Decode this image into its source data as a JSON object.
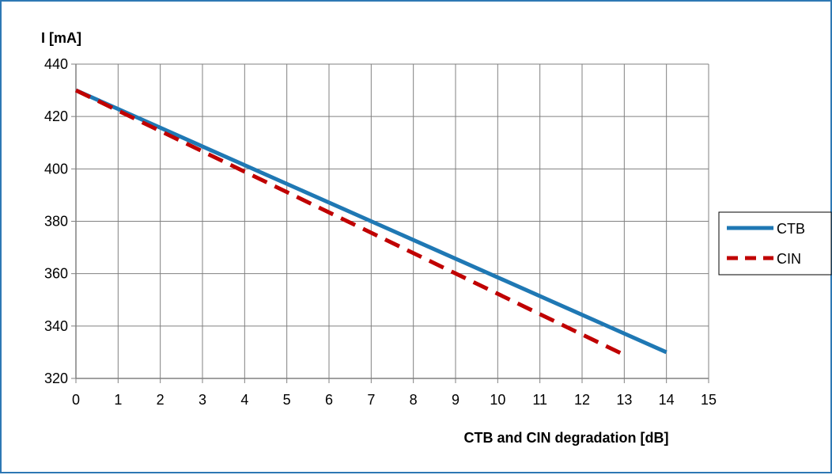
{
  "chart_data": {
    "type": "line",
    "ylabel": "I [mA]",
    "xlabel": "CTB and CIN degradation [dB]",
    "xlim": [
      0,
      15
    ],
    "ylim": [
      320,
      440
    ],
    "x_ticks": [
      0,
      1,
      2,
      3,
      4,
      5,
      6,
      7,
      8,
      9,
      10,
      11,
      12,
      13,
      14,
      15
    ],
    "y_ticks": [
      320,
      340,
      360,
      380,
      400,
      420,
      440
    ],
    "x_tick_labels": [
      "0",
      "1",
      "2",
      "3",
      "4",
      "5",
      "6",
      "7",
      "8",
      "9",
      "10",
      "11",
      "12",
      "13",
      "14",
      "15"
    ],
    "y_tick_labels": [
      "320",
      "340",
      "360",
      "380",
      "400",
      "420",
      "440"
    ],
    "grid": true,
    "legend_position": "right",
    "series": [
      {
        "name": "CTB",
        "color": "#1f78b4",
        "style": "solid",
        "x": [
          0,
          14
        ],
        "y": [
          430,
          330
        ]
      },
      {
        "name": "CIN",
        "color": "#c00000",
        "style": "dashed",
        "x": [
          0,
          13
        ],
        "y": [
          430,
          329
        ]
      }
    ]
  },
  "colors": {
    "frame": "#2e78b4",
    "grid": "#808080",
    "axis": "#808080"
  }
}
